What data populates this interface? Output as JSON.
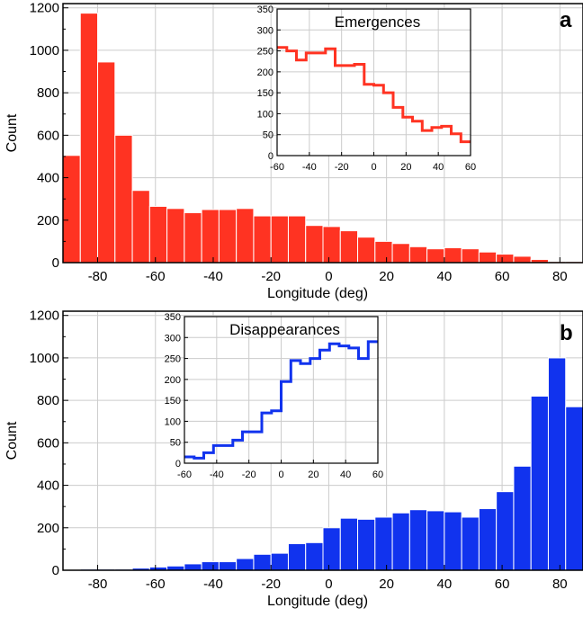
{
  "colors": {
    "panel_a": "#ff3322",
    "panel_b": "#1133ee",
    "grid": "#cccccc"
  },
  "chart_data": [
    {
      "type": "bar",
      "panel_label": "a",
      "xlabel": "Longitude (deg)",
      "ylabel": "Count",
      "xlim": [
        -92,
        88
      ],
      "ylim": [
        0,
        1220
      ],
      "xticks": [
        -80,
        -60,
        -40,
        -20,
        0,
        20,
        40,
        60,
        80
      ],
      "yticks": [
        0,
        200,
        400,
        600,
        800,
        1000,
        1200
      ],
      "bin_width": 6,
      "x": [
        -89,
        -83,
        -77,
        -71,
        -65,
        -59,
        -53,
        -47,
        -41,
        -35,
        -29,
        -23,
        -17,
        -11,
        -5,
        1,
        7,
        13,
        19,
        25,
        31,
        37,
        43,
        49,
        55,
        61,
        67,
        73,
        79,
        85
      ],
      "values": [
        505,
        1175,
        945,
        600,
        340,
        265,
        255,
        235,
        250,
        250,
        255,
        220,
        220,
        220,
        175,
        170,
        150,
        120,
        100,
        90,
        75,
        65,
        70,
        65,
        50,
        40,
        30,
        15,
        5,
        5
      ],
      "grid": true,
      "inset": {
        "type": "step",
        "title": "Emergences",
        "xlim": [
          -60,
          60
        ],
        "ylim": [
          0,
          350
        ],
        "xticks": [
          -60,
          -40,
          -20,
          0,
          20,
          40,
          60
        ],
        "yticks": [
          0,
          50,
          100,
          150,
          200,
          250,
          300,
          350
        ],
        "edges": [
          -60,
          -54,
          -48,
          -42,
          -36,
          -30,
          -24,
          -18,
          -12,
          -6,
          0,
          6,
          12,
          18,
          24,
          30,
          36,
          42,
          48,
          54,
          60
        ],
        "values": [
          258,
          250,
          228,
          245,
          245,
          255,
          215,
          215,
          218,
          170,
          168,
          150,
          115,
          92,
          82,
          60,
          67,
          70,
          52,
          33
        ]
      }
    },
    {
      "type": "bar",
      "panel_label": "b",
      "xlabel": "Longitude (deg)",
      "ylabel": "Count",
      "xlim": [
        -92,
        88
      ],
      "ylim": [
        0,
        1220
      ],
      "xticks": [
        -80,
        -60,
        -40,
        -20,
        0,
        20,
        40,
        60,
        80
      ],
      "yticks": [
        0,
        200,
        400,
        600,
        800,
        1000,
        1200
      ],
      "bin_width": 6,
      "x": [
        -89,
        -83,
        -77,
        -71,
        -65,
        -59,
        -53,
        -47,
        -41,
        -35,
        -29,
        -23,
        -17,
        -11,
        -5,
        1,
        7,
        13,
        19,
        25,
        31,
        37,
        43,
        49,
        55,
        61,
        67,
        73,
        79,
        85
      ],
      "values": [
        2,
        5,
        5,
        5,
        10,
        15,
        20,
        30,
        40,
        40,
        55,
        75,
        80,
        125,
        130,
        200,
        245,
        240,
        250,
        270,
        285,
        280,
        275,
        250,
        290,
        370,
        490,
        820,
        1000,
        770
      ],
      "grid": true,
      "inset": {
        "type": "step",
        "title": "Disappearances",
        "xlim": [
          -60,
          60
        ],
        "ylim": [
          0,
          350
        ],
        "xticks": [
          -60,
          -40,
          -20,
          0,
          20,
          40,
          60
        ],
        "yticks": [
          0,
          50,
          100,
          150,
          200,
          250,
          300,
          350
        ],
        "edges": [
          -60,
          -54,
          -48,
          -42,
          -36,
          -30,
          -24,
          -18,
          -12,
          -6,
          0,
          6,
          12,
          18,
          24,
          30,
          36,
          42,
          48,
          54,
          60
        ],
        "values": [
          15,
          12,
          25,
          42,
          42,
          55,
          75,
          75,
          120,
          125,
          195,
          245,
          238,
          250,
          270,
          285,
          280,
          275,
          250,
          290
        ]
      }
    }
  ]
}
